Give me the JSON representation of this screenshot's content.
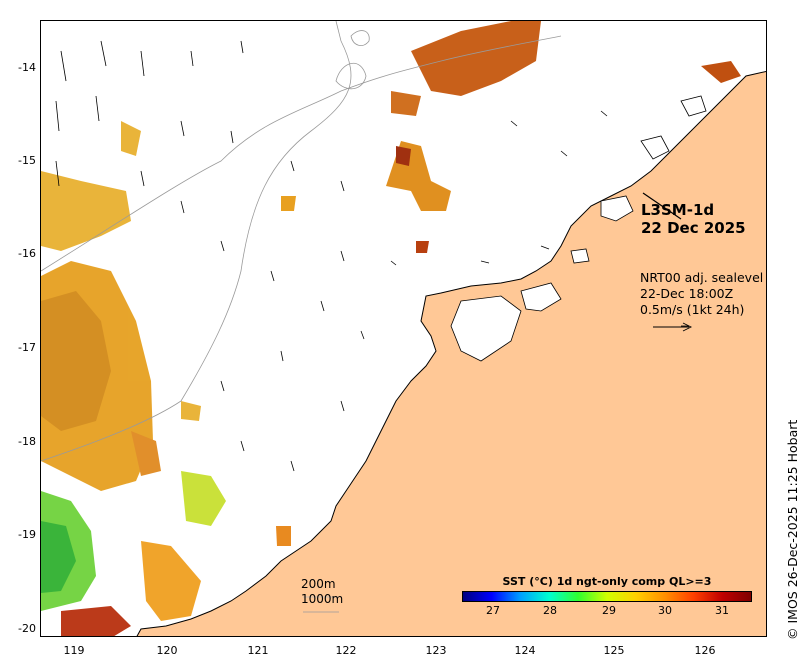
{
  "map": {
    "product_line1": "L3SM-1d",
    "product_line2": "22 Dec 2025",
    "currents_line1": "NRT00 adj. sealevel",
    "currents_line2": "22-Dec 18:00Z",
    "currents_line3": "0.5m/s (1kt 24h)",
    "iso_200": "200m",
    "iso_1000": "1000m",
    "credit": "© IMOS 26-Dec-2025 11:25 Hobart",
    "lat_ticks": [
      "-14",
      "-15",
      "-16",
      "-17",
      "-18",
      "-19",
      "-20"
    ],
    "lon_ticks": [
      "119",
      "120",
      "121",
      "122",
      "123",
      "124",
      "125",
      "126"
    ],
    "land_color": "#ffc896"
  },
  "colorbar": {
    "title": "SST (°C) 1d ngt-only comp QL>=3",
    "ticks": [
      "27",
      "28",
      "29",
      "30",
      "31"
    ]
  }
}
